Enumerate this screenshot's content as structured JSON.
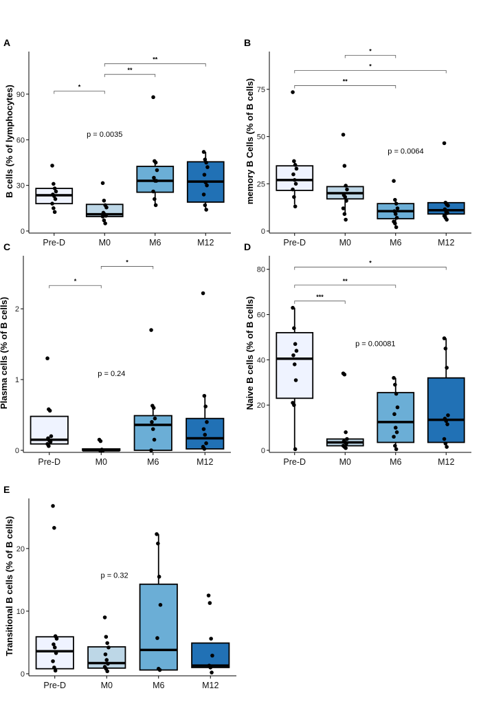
{
  "colors": {
    "Pre-D": "#eff3ff",
    "M0": "#bdd7e7",
    "M6": "#6baed6",
    "M12": "#2171b5",
    "stroke": "#000000",
    "bracket": "#555555"
  },
  "chart_data": [
    {
      "panel": "A",
      "type": "box",
      "ylabel": "B cells (% of lymphocytes)",
      "categories": [
        "Pre-D",
        "M0",
        "M6",
        "M12"
      ],
      "ylim": [
        0,
        118
      ],
      "yticks": [
        0,
        30,
        60,
        90
      ],
      "ptext": "p = 0.0035",
      "ptext_pos": {
        "cat": 1.0,
        "y": 62
      },
      "boxes": [
        {
          "q1": 18,
          "median": 23.5,
          "q3": 28,
          "lo": 18,
          "hi": 28
        },
        {
          "q1": 9.5,
          "median": 11,
          "q3": 17.5,
          "lo": 9.5,
          "hi": 17.5
        },
        {
          "q1": 25.5,
          "median": 33,
          "q3": 42.5,
          "lo": 17,
          "hi": 46
        },
        {
          "q1": 19,
          "median": 32.5,
          "q3": 45.5,
          "lo": 14,
          "hi": 52
        }
      ],
      "points": [
        [
          43,
          31,
          28,
          26,
          24,
          23,
          21,
          18,
          15,
          12.5
        ],
        [
          31.5,
          20,
          17,
          15.5,
          12,
          11,
          10,
          9.5,
          7,
          5
        ],
        [
          88,
          46,
          45,
          40,
          35,
          33,
          33,
          26,
          21,
          17
        ],
        [
          52,
          47,
          45,
          42,
          37,
          32,
          30,
          24,
          17,
          14
        ]
      ],
      "brackets": [
        {
          "from": 0,
          "to": 1,
          "label": "*",
          "y": 92
        },
        {
          "from": 1,
          "to": 2,
          "label": "**",
          "y": 103
        },
        {
          "from": 1,
          "to": 3,
          "label": "**",
          "y": 110
        }
      ]
    },
    {
      "panel": "B",
      "type": "box",
      "ylabel": "memory B Cells (% of B cells)",
      "categories": [
        "Pre-D",
        "M0",
        "M6",
        "M12"
      ],
      "ylim": [
        0,
        95
      ],
      "yticks": [
        0,
        25,
        50,
        75
      ],
      "ptext": "p = 0.0064",
      "ptext_pos": {
        "cat": 2.2,
        "y": 41
      },
      "boxes": [
        {
          "q1": 21.5,
          "median": 27,
          "q3": 34.5,
          "lo": 14,
          "hi": 37
        },
        {
          "q1": 17,
          "median": 20,
          "q3": 23.5,
          "lo": 9,
          "hi": 24.5
        },
        {
          "q1": 6.5,
          "median": 10.5,
          "q3": 14.5,
          "lo": 2.5,
          "hi": 16.5
        },
        {
          "q1": 9,
          "median": 11,
          "q3": 15,
          "lo": 6.5,
          "hi": 15
        }
      ],
      "points": [
        [
          73.5,
          37,
          35,
          33,
          30,
          27,
          25,
          22,
          18,
          13
        ],
        [
          51,
          34.5,
          24,
          22,
          19,
          18,
          16,
          12,
          9,
          6
        ],
        [
          26.5,
          16.5,
          14.5,
          12,
          10.5,
          9,
          7,
          5,
          4,
          2
        ],
        [
          46.5,
          15,
          14,
          13.5,
          11.5,
          10,
          9.5,
          8,
          7,
          6
        ]
      ],
      "brackets": [
        {
          "from": 0,
          "to": 2,
          "label": "**",
          "y": 77
        },
        {
          "from": 0,
          "to": 3,
          "label": "*",
          "y": 85
        },
        {
          "from": 1,
          "to": 2,
          "label": "*",
          "y": 93
        }
      ]
    },
    {
      "panel": "C",
      "type": "box",
      "ylabel": "Plasma cells (% of B cells)",
      "categories": [
        "Pre-D",
        "M0",
        "M6",
        "M12"
      ],
      "ylim": [
        0,
        2.75
      ],
      "yticks": [
        0,
        1,
        2
      ],
      "ptext": "p = 0.24",
      "ptext_pos": {
        "cat": 1.2,
        "y": 1.05
      },
      "boxes": [
        {
          "q1": 0.09,
          "median": 0.15,
          "q3": 0.48,
          "lo": 0.09,
          "hi": 0.48
        },
        {
          "q1": 0.0,
          "median": 0.0,
          "q3": 0.02,
          "lo": 0.0,
          "hi": 0.02
        },
        {
          "q1": 0.0,
          "median": 0.36,
          "q3": 0.49,
          "lo": 0.0,
          "hi": 0.63
        },
        {
          "q1": 0.02,
          "median": 0.17,
          "q3": 0.45,
          "lo": 0.02,
          "hi": 0.77
        }
      ],
      "points": [
        [
          1.3,
          0.58,
          0.56,
          0.2,
          0.17,
          0.14,
          0.12,
          0.09,
          0.06
        ],
        [
          0.15,
          0.13,
          0.01,
          0.0,
          0.0,
          0.0
        ],
        [
          1.7,
          0.63,
          0.6,
          0.45,
          0.4,
          0.3,
          0.15,
          0.0
        ],
        [
          2.22,
          0.77,
          0.62,
          0.4,
          0.3,
          0.22,
          0.1,
          0.05,
          0.02
        ]
      ],
      "brackets": [
        {
          "from": 0,
          "to": 1,
          "label": "*",
          "y": 2.33
        },
        {
          "from": 1,
          "to": 2,
          "label": "*",
          "y": 2.6
        }
      ]
    },
    {
      "panel": "D",
      "type": "box",
      "ylabel": "Naive B cells (% of B cells)",
      "categories": [
        "Pre-D",
        "M0",
        "M6",
        "M12"
      ],
      "ylim": [
        0,
        86
      ],
      "yticks": [
        0,
        20,
        40,
        60,
        80
      ],
      "ptext": "p = 0.00081",
      "ptext_pos": {
        "cat": 1.6,
        "y": 46
      },
      "boxes": [
        {
          "q1": 23,
          "median": 40.5,
          "q3": 52,
          "lo": 0,
          "hi": 63
        },
        {
          "q1": 2,
          "median": 3.5,
          "q3": 5,
          "lo": 1,
          "hi": 5
        },
        {
          "q1": 3.5,
          "median": 12.5,
          "q3": 25.5,
          "lo": 0,
          "hi": 32
        },
        {
          "q1": 3.5,
          "median": 13.5,
          "q3": 32,
          "lo": 1.5,
          "hi": 49.5
        }
      ],
      "points": [
        [
          63,
          54,
          47,
          44,
          42,
          38,
          31,
          21,
          20,
          0.5
        ],
        [
          34,
          33.5,
          8,
          5,
          4,
          3.5,
          3,
          2,
          1.5,
          1
        ],
        [
          32,
          29,
          25,
          19,
          16,
          10,
          8,
          6,
          2,
          0.5
        ],
        [
          49.5,
          45,
          36.5,
          15.5,
          14,
          13,
          11.5,
          5,
          3,
          1.5
        ]
      ],
      "brackets": [
        {
          "from": 0,
          "to": 1,
          "label": "***",
          "y": 66
        },
        {
          "from": 0,
          "to": 2,
          "label": "**",
          "y": 73
        },
        {
          "from": 0,
          "to": 3,
          "label": "*",
          "y": 81
        }
      ]
    },
    {
      "panel": "E",
      "type": "box",
      "ylabel": "Transitional B cells (% of B cells)",
      "categories": [
        "Pre-D",
        "M0",
        "M6",
        "M12"
      ],
      "ylim": [
        0,
        28
      ],
      "yticks": [
        0,
        10,
        20
      ],
      "ptext": "p = 0.32",
      "ptext_pos": {
        "cat": 1.15,
        "y": 15.3
      },
      "boxes": [
        {
          "q1": 0.8,
          "median": 3.6,
          "q3": 5.9,
          "lo": 0.8,
          "hi": 5.9
        },
        {
          "q1": 0.9,
          "median": 1.7,
          "q3": 4.3,
          "lo": 0.9,
          "hi": 4.3
        },
        {
          "q1": 0.6,
          "median": 3.8,
          "q3": 14.3,
          "lo": 0.6,
          "hi": 22.3
        },
        {
          "q1": 1.0,
          "median": 1.3,
          "q3": 4.9,
          "lo": 1.0,
          "hi": 4.9
        }
      ],
      "points": [
        [
          26.8,
          23.3,
          6,
          5.6,
          4.7,
          4.2,
          3.3,
          2,
          1,
          0.5
        ],
        [
          9,
          5.9,
          4.9,
          4.2,
          3.1,
          2.2,
          1.6,
          1.1,
          0.8,
          0.4
        ],
        [
          22.3,
          20.8,
          15.5,
          11,
          5.7,
          0.8,
          0.6
        ],
        [
          12.5,
          11.3,
          5.6,
          2.9,
          1.3,
          1.0,
          0.2
        ]
      ],
      "brackets": []
    }
  ]
}
